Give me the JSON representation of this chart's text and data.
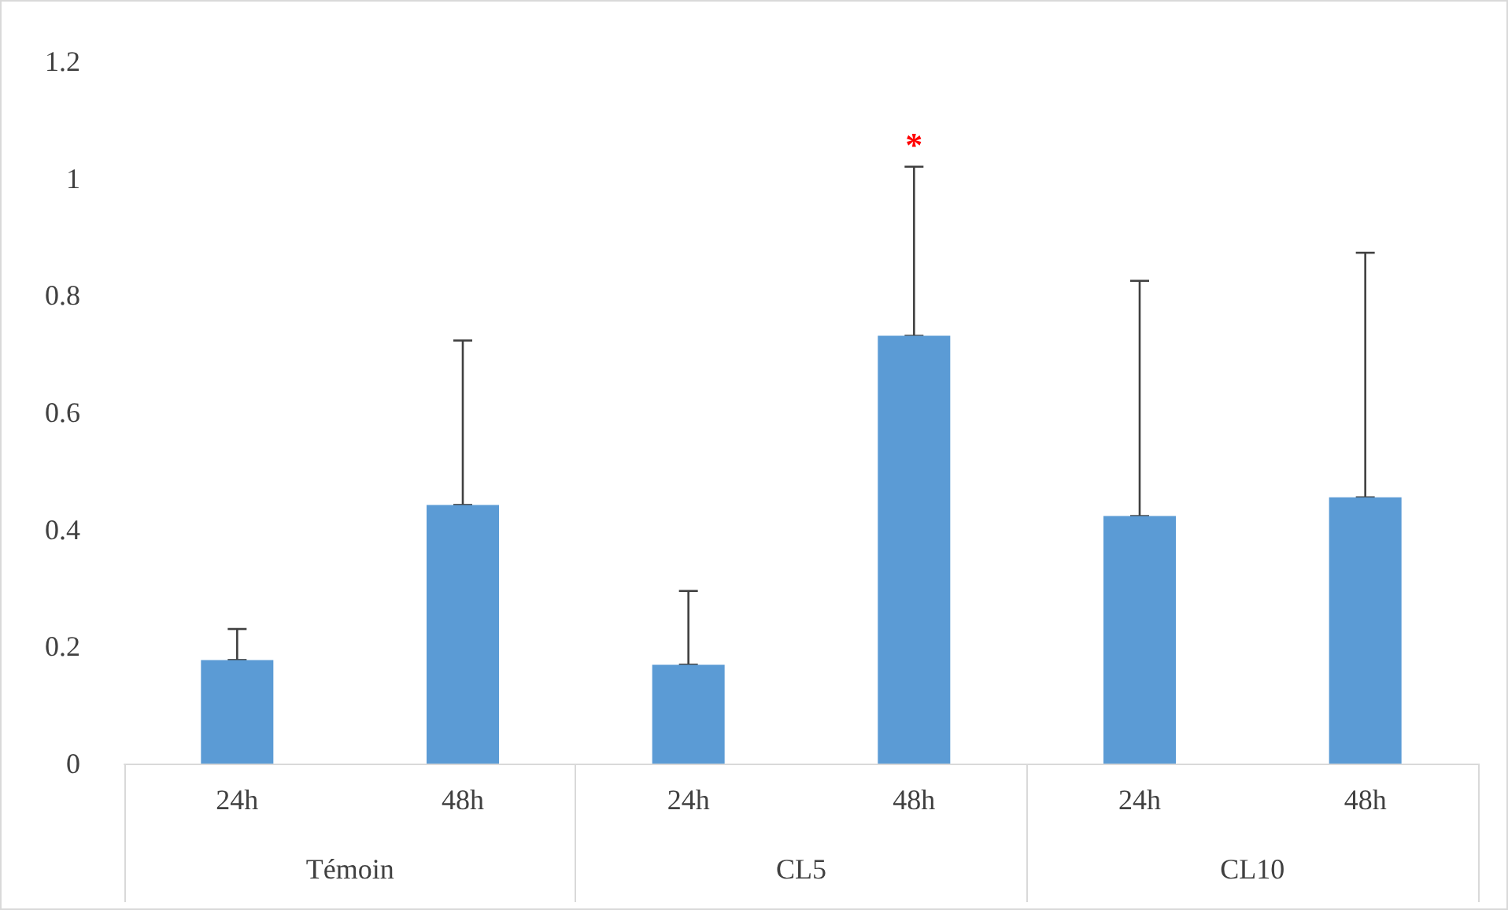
{
  "chart_data": {
    "type": "bar",
    "categories": [
      "24h",
      "48h",
      "24h",
      "48h",
      "24h",
      "48h"
    ],
    "series": [
      {
        "color": "#5b9bd5",
        "values": [
          0.177,
          0.442,
          0.169,
          0.731,
          0.423,
          0.455
        ],
        "errors": [
          [
            0.177,
            0.23
          ],
          [
            0.442,
            0.723
          ],
          [
            0.169,
            0.295
          ],
          [
            0.731,
            1.02
          ],
          [
            0.423,
            0.825
          ],
          [
            0.455,
            0.873
          ]
        ]
      }
    ],
    "ylim": [
      0,
      1.2
    ],
    "yticks": [
      0,
      0.2,
      0.4,
      0.6,
      0.8,
      1,
      1.2
    ],
    "grid": false,
    "annotations": [
      "Témoin",
      "CL5",
      "CL10",
      "*"
    ]
  }
}
